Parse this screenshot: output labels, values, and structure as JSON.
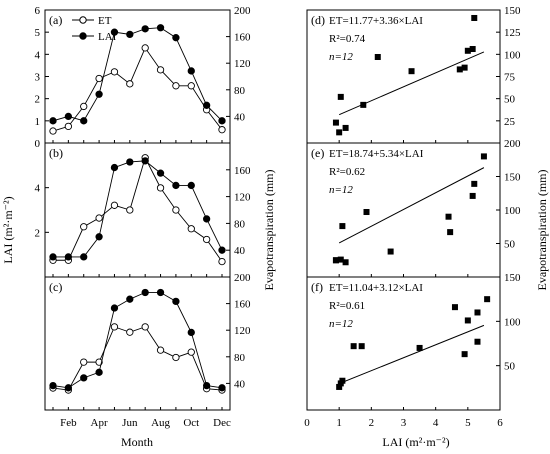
{
  "chart_data": [
    {
      "panel": "(a)",
      "type": "line",
      "x_ticks": [
        "Feb",
        "Apr",
        "Jun",
        "Aug",
        "Oct",
        "Dec"
      ],
      "x": [
        1,
        2,
        3,
        4,
        5,
        6,
        7,
        8,
        9,
        10,
        11,
        12
      ],
      "left_axis": {
        "ylim": [
          0,
          6
        ],
        "ticks": [
          0,
          1,
          2,
          3,
          4,
          5,
          6
        ]
      },
      "right_axis": {
        "ylim": [
          0,
          200
        ],
        "ticks": [
          40,
          80,
          120,
          160,
          200
        ]
      },
      "legend": [
        "ET",
        "LAI"
      ],
      "series": [
        {
          "name": "ET",
          "axis": "right",
          "marker": "open-circle",
          "values": [
            18,
            25,
            55,
            97,
            107,
            89,
            143,
            110,
            86,
            86,
            50,
            20
          ]
        },
        {
          "name": "LAI",
          "axis": "left",
          "marker": "filled-circle",
          "values": [
            1.0,
            1.2,
            1.0,
            2.2,
            5.0,
            4.9,
            5.15,
            5.2,
            4.75,
            3.25,
            1.7,
            1.0
          ]
        }
      ]
    },
    {
      "panel": "(b)",
      "type": "line",
      "x": [
        1,
        2,
        3,
        4,
        5,
        6,
        7,
        8,
        9,
        10,
        11,
        12
      ],
      "left_axis": {
        "ylim": [
          0,
          6
        ],
        "ticks": [
          2,
          4
        ]
      },
      "right_axis": {
        "ylim": [
          0,
          200
        ],
        "ticks": [
          40,
          80,
          120,
          160
        ]
      },
      "series": [
        {
          "name": "ET",
          "axis": "right",
          "marker": "open-circle",
          "values": [
            25,
            25,
            75,
            88,
            107,
            100,
            178,
            133,
            100,
            72,
            56,
            23
          ]
        },
        {
          "name": "LAI",
          "axis": "left",
          "marker": "filled-circle",
          "values": [
            0.9,
            0.9,
            0.9,
            1.8,
            4.9,
            5.15,
            5.2,
            4.65,
            4.1,
            4.1,
            2.6,
            1.2
          ]
        }
      ]
    },
    {
      "panel": "(c)",
      "type": "line",
      "x": [
        1,
        2,
        3,
        4,
        5,
        6,
        7,
        8,
        9,
        10,
        11,
        12
      ],
      "left_axis": {
        "ylim": [
          0,
          6
        ],
        "ticks": []
      },
      "right_axis": {
        "ylim": [
          0,
          200
        ],
        "ticks": [
          40,
          80,
          120,
          160,
          200
        ]
      },
      "series": [
        {
          "name": "ET",
          "axis": "right",
          "marker": "open-circle",
          "values": [
            33,
            30,
            72,
            72,
            125,
            117,
            125,
            90,
            79,
            87,
            32,
            30
          ]
        },
        {
          "name": "LAI",
          "axis": "left",
          "marker": "filled-circle",
          "values": [
            1.1,
            1.0,
            1.45,
            1.7,
            4.6,
            5.0,
            5.3,
            5.3,
            4.9,
            3.5,
            1.1,
            1.0
          ]
        }
      ]
    },
    {
      "panel": "(d)",
      "type": "scatter",
      "equation": "ET=11.77+3.36×LAI",
      "r2": "R²=0.74",
      "n": "n=12",
      "xlim": [
        0,
        6
      ],
      "ylim": [
        0,
        150
      ],
      "right_ticks": [
        25,
        50,
        75,
        100,
        125,
        150
      ],
      "points": [
        [
          0.9,
          23
        ],
        [
          1.0,
          12
        ],
        [
          1.05,
          52
        ],
        [
          1.2,
          17
        ],
        [
          1.75,
          43
        ],
        [
          2.2,
          97
        ],
        [
          3.25,
          81
        ],
        [
          4.75,
          83
        ],
        [
          4.9,
          85
        ],
        [
          5.0,
          104
        ],
        [
          5.15,
          106
        ],
        [
          5.2,
          141
        ]
      ],
      "fit": {
        "intercept": 11.77,
        "slope": 3.36
      }
    },
    {
      "panel": "(e)",
      "type": "scatter",
      "equation": "ET=18.74+5.34×LAI",
      "r2": "R²=0.62",
      "n": "n=12",
      "xlim": [
        0,
        6
      ],
      "ylim": [
        0,
        200
      ],
      "right_ticks": [
        50,
        100,
        150,
        200
      ],
      "points": [
        [
          0.9,
          25
        ],
        [
          0.9,
          25
        ],
        [
          1.05,
          26
        ],
        [
          1.1,
          76
        ],
        [
          1.2,
          22
        ],
        [
          1.85,
          97
        ],
        [
          2.6,
          38
        ],
        [
          4.4,
          90
        ],
        [
          4.45,
          67
        ],
        [
          5.15,
          121
        ],
        [
          5.2,
          139
        ],
        [
          5.5,
          180
        ]
      ],
      "fit": {
        "intercept": 18.74,
        "slope": 5.34
      }
    },
    {
      "panel": "(f)",
      "type": "scatter",
      "equation": "ET=11.04+3.12×LAI",
      "r2": "R²=0.61",
      "n": "n=12",
      "xlim": [
        0,
        6
      ],
      "ylim": [
        0,
        150
      ],
      "x_ticks": [
        0,
        1,
        2,
        3,
        4,
        5,
        6
      ],
      "right_ticks": [
        50,
        100,
        150
      ],
      "points": [
        [
          1.0,
          26
        ],
        [
          1.05,
          30
        ],
        [
          1.45,
          72
        ],
        [
          1.7,
          72
        ],
        [
          3.5,
          70
        ],
        [
          4.6,
          116
        ],
        [
          4.9,
          63
        ],
        [
          5.0,
          101
        ],
        [
          5.3,
          77
        ],
        [
          5.3,
          110
        ],
        [
          1.1,
          33
        ],
        [
          5.6,
          125
        ]
      ],
      "fit": {
        "intercept": 11.04,
        "slope": 3.12
      }
    }
  ],
  "labels": {
    "left_ylabel": "LAI (m²·m⁻²)",
    "mid_ylabel": "Evapotranspiration (mm)",
    "right_ylabel": "Evapotranspiration (mm)",
    "left_xlabel": "Month",
    "right_xlabel": "LAI (m²·m⁻²)"
  }
}
